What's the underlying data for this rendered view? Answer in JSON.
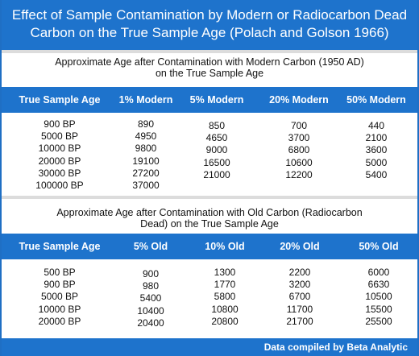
{
  "title": {
    "line1": "Effect of Sample Contamination by Modern or Radiocarbon Dead",
    "line2": "Carbon on the True Sample Age (Polach and Golson 1966)"
  },
  "modern": {
    "subtitle_line1": "Approximate Age after Contamination with Modern Carbon (1950 AD)",
    "subtitle_line2": "on the True Sample Age",
    "headers": [
      "True Sample Age",
      "1% Modern",
      "5% Modern",
      "20% Modern",
      "50% Modern"
    ],
    "columns": [
      [
        "900 BP",
        "5000 BP",
        "10000 BP",
        "20000 BP",
        "30000 BP",
        "100000 BP"
      ],
      [
        "890",
        "4950",
        "9800",
        "19100",
        "27200",
        "37000"
      ],
      [
        "850",
        "4650",
        "9000",
        "16500",
        "21000"
      ],
      [
        "700",
        "3700",
        "6800",
        "10600",
        "12200"
      ],
      [
        "440",
        "2100",
        "3600",
        "5000",
        "5400"
      ]
    ]
  },
  "old": {
    "subtitle_line1": "Approximate Age after Contamination with Old Carbon (Radiocarbon",
    "subtitle_line2": "Dead) on the True Sample Age",
    "headers": [
      "True Sample Age",
      "5% Old",
      "10% Old",
      "20% Old",
      "50% Old"
    ],
    "columns": [
      [
        "500 BP",
        "900 BP",
        "5000 BP",
        "10000 BP",
        "20000 BP"
      ],
      [
        "900",
        "980",
        "5400",
        "10400",
        "20400"
      ],
      [
        "1300",
        "1770",
        "5800",
        "10800",
        "20800"
      ],
      [
        "2200",
        "3200",
        "6700",
        "11700",
        "21700"
      ],
      [
        "6000",
        "6630",
        "10500",
        "15500",
        "25500"
      ]
    ]
  },
  "footer": "Data compiled by Beta Analytic",
  "colors": {
    "header_blue": "#1e73cc",
    "separator": "#dcdcdc"
  }
}
